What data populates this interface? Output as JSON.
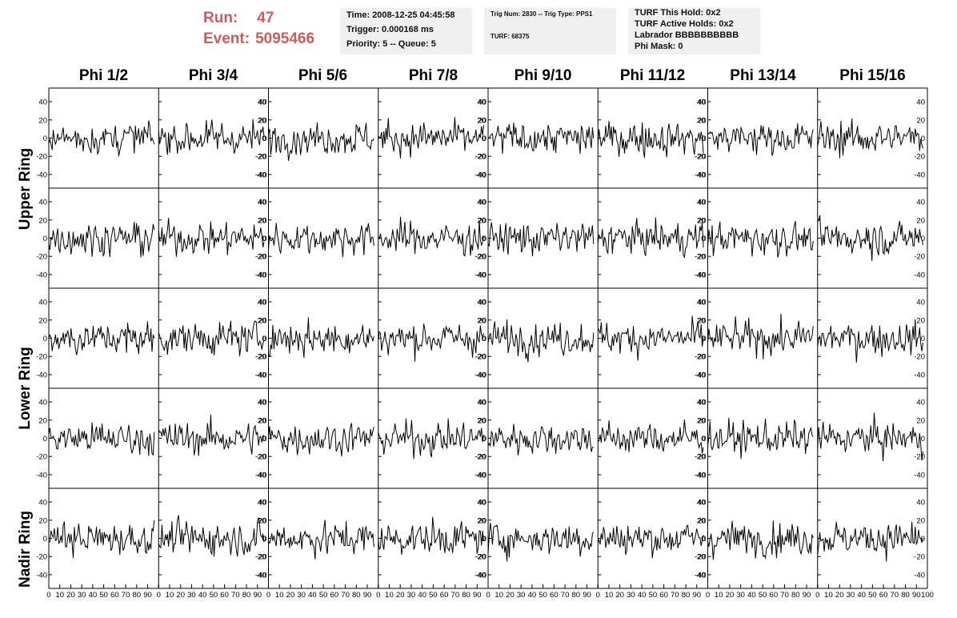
{
  "run_info": {
    "run_label": "Run:",
    "run_value": "47",
    "event_label": "Event:",
    "event_value": "5095466"
  },
  "time_panel": {
    "time": "Time: 2008-12-25 04:45:58",
    "trigger": "Trigger: 0.000168 ms",
    "priority": "Priority: 5 -- Queue: 5"
  },
  "trig_panel": {
    "trig_num": "Trig Num: 2830 -- Trig Type: PPS1",
    "turf": "TURF: 68375"
  },
  "turf_panel": {
    "this_hold": "TURF This Hold: 0x2",
    "active_holds": "TURF Active Holds: 0x2",
    "labrador": "Labrador BBBBBBBBBB",
    "phi_mask": "Phi Mask: 0"
  },
  "colors": {
    "run_text": "#cd5c5c",
    "panel_bg": "#f0f0f0",
    "trace": "#000000"
  },
  "chart_data": {
    "type": "line",
    "columns": [
      "Phi 1/2",
      "Phi 3/4",
      "Phi 5/6",
      "Phi 7/8",
      "Phi 9/10",
      "Phi 11/12",
      "Phi 13/14",
      "Phi 15/16"
    ],
    "rows": [
      "Upper Ring",
      "Upper Ring",
      "Lower Ring",
      "Lower Ring",
      "Nadir Ring"
    ],
    "ring_labels": [
      "Upper Ring",
      "Lower Ring",
      "Nadir Ring"
    ],
    "xlim": [
      0,
      100
    ],
    "ylim": [
      -55,
      55
    ],
    "y_ticks": [
      -40,
      -20,
      0,
      20,
      40
    ],
    "x_tick_labels": [
      "0",
      "10",
      "20",
      "30",
      "40",
      "50",
      "60",
      "70",
      "80",
      "90",
      "100"
    ],
    "sample_count": 96,
    "amplitude_rms_estimate": 11,
    "grid": false,
    "legend": "none"
  }
}
